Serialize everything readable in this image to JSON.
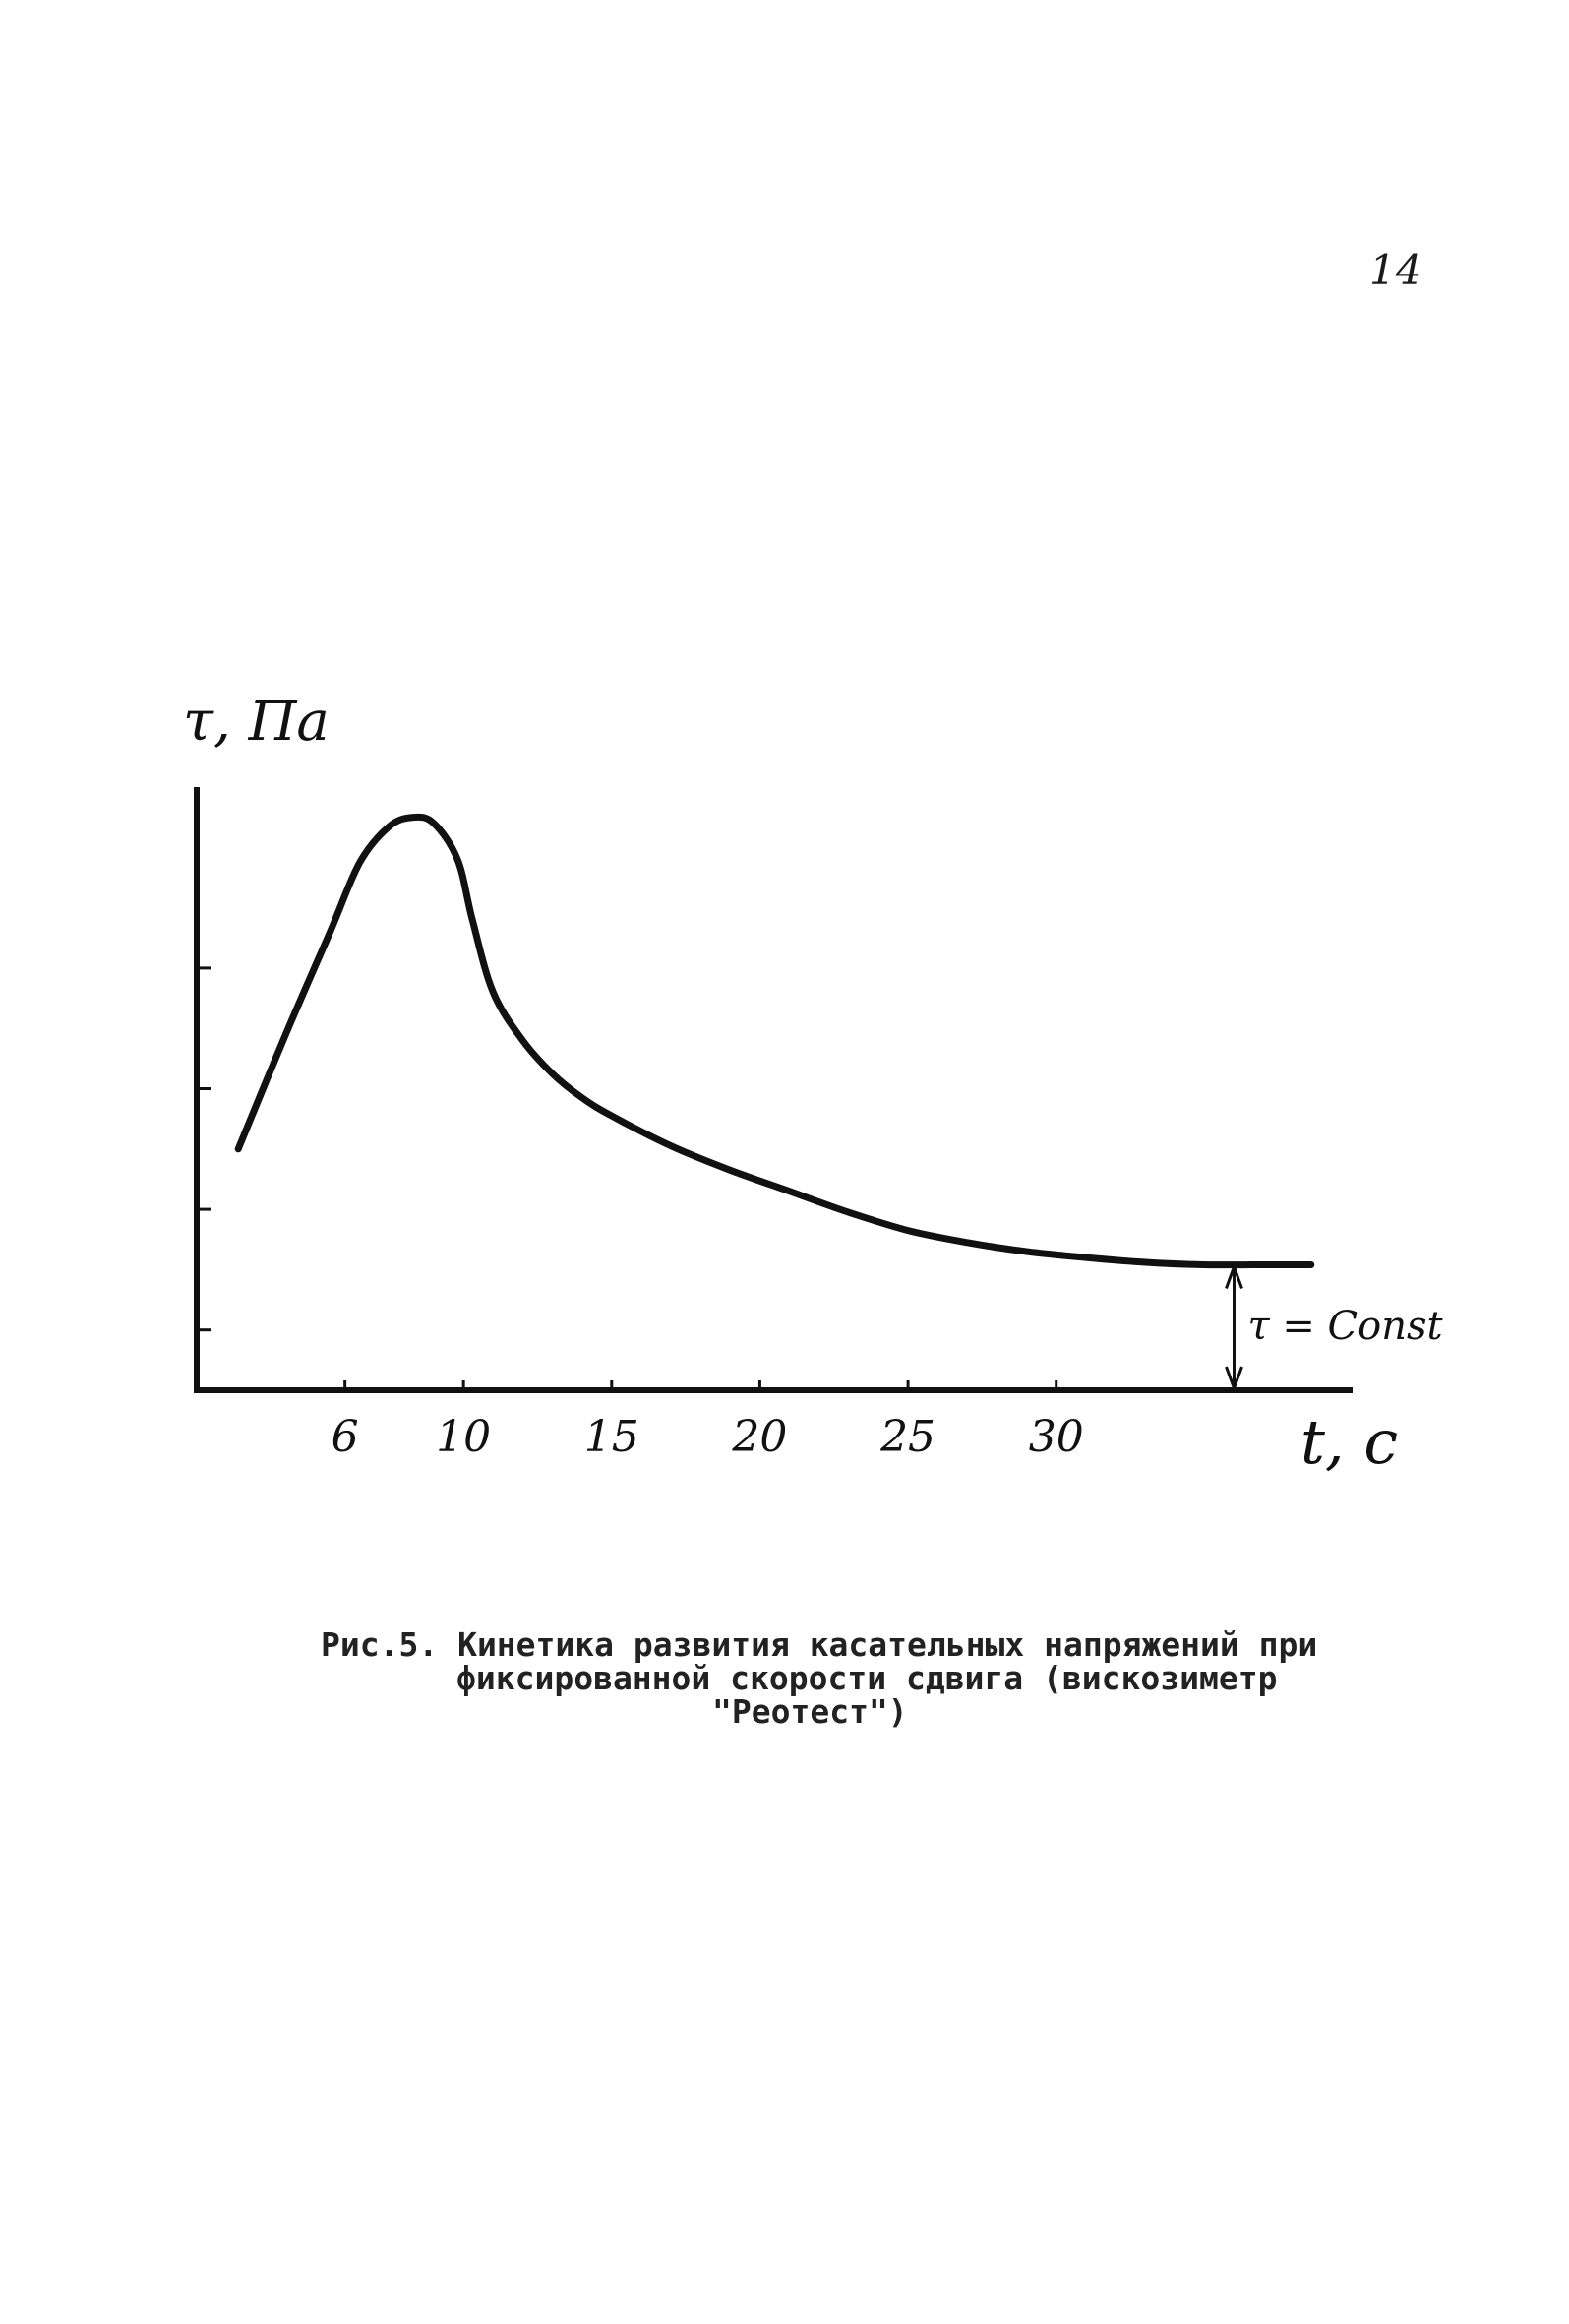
{
  "page": {
    "number": "14"
  },
  "chart_data": {
    "type": "line",
    "ylabel": "τ, Па",
    "xlabel": "t, c",
    "xticks": [
      6,
      10,
      15,
      20,
      25,
      30
    ],
    "xtick_labels": [
      "6",
      "10",
      "15",
      "20",
      "25",
      "30"
    ],
    "xlim": [
      1,
      40
    ],
    "ylim": [
      0,
      10
    ],
    "y_minor_ticks": [
      1,
      3,
      5,
      7
    ],
    "series": [
      {
        "x": [
          2.4,
          4,
          5.5,
          6.5,
          7.5,
          8.3,
          9,
          9.8,
          10.3,
          11,
          12,
          13,
          14,
          15,
          17,
          19,
          21,
          23,
          25,
          27,
          29,
          31,
          33,
          35,
          37,
          38.6
        ],
        "y": [
          4.0,
          5.9,
          7.6,
          8.75,
          9.35,
          9.5,
          9.4,
          8.8,
          7.8,
          6.6,
          5.8,
          5.25,
          4.85,
          4.55,
          4.05,
          3.65,
          3.3,
          2.95,
          2.65,
          2.45,
          2.3,
          2.2,
          2.12,
          2.08,
          2.08,
          2.08
        ]
      }
    ],
    "annotations": [
      {
        "text": "τ = Const",
        "x": 36,
        "y_from": 0,
        "y_to": 2.08,
        "style": "double-arrow"
      }
    ],
    "grid": false
  },
  "caption": {
    "line1": "Рис.5. Кинетика развития касательных напряжений при",
    "line2": "фиксированной скорости сдвига (вискозиметр",
    "line3": "\"Реотест\")"
  }
}
